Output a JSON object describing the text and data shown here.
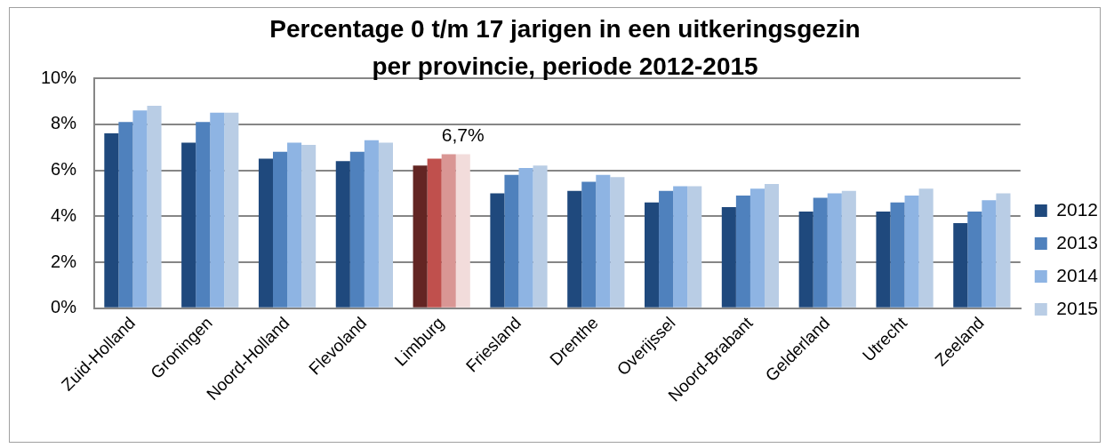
{
  "chart_data": {
    "type": "bar",
    "title": "Percentage 0 t/m 17 jarigen in een uitkeringsgezin\nper provincie, periode 2012-2015",
    "categories": [
      "Zuid-Holland",
      "Groningen",
      "Noord-Holland",
      "Flevoland",
      "Limburg",
      "Friesland",
      "Drenthe",
      "Overijssel",
      "Noord-Brabant",
      "Gelderland",
      "Utrecht",
      "Zeeland"
    ],
    "series": [
      {
        "name": "2012",
        "color": "#1f497d",
        "colors": [
          "#1f497d",
          "#1f497d",
          "#1f497d",
          "#1f497d",
          "#632523",
          "#1f497d",
          "#1f497d",
          "#1f497d",
          "#1f497d",
          "#1f497d",
          "#1f497d",
          "#1f497d"
        ],
        "values": [
          7.6,
          7.2,
          6.5,
          6.4,
          6.2,
          5.0,
          5.1,
          4.6,
          4.4,
          4.2,
          4.2,
          3.7
        ]
      },
      {
        "name": "2013",
        "color": "#4f81bd",
        "colors": [
          "#4f81bd",
          "#4f81bd",
          "#4f81bd",
          "#4f81bd",
          "#c0504d",
          "#4f81bd",
          "#4f81bd",
          "#4f81bd",
          "#4f81bd",
          "#4f81bd",
          "#4f81bd",
          "#4f81bd"
        ],
        "values": [
          8.1,
          8.1,
          6.8,
          6.8,
          6.5,
          5.8,
          5.5,
          5.1,
          4.9,
          4.8,
          4.6,
          4.2
        ]
      },
      {
        "name": "2014",
        "color": "#8eb4e3",
        "colors": [
          "#8eb4e3",
          "#8eb4e3",
          "#8eb4e3",
          "#8eb4e3",
          "#d99694",
          "#8eb4e3",
          "#8eb4e3",
          "#8eb4e3",
          "#8eb4e3",
          "#8eb4e3",
          "#8eb4e3",
          "#8eb4e3"
        ],
        "values": [
          8.6,
          8.5,
          7.2,
          7.3,
          6.7,
          6.1,
          5.8,
          5.3,
          5.2,
          5.0,
          4.9,
          4.7
        ]
      },
      {
        "name": "2015",
        "color": "#b9cde5",
        "colors": [
          "#b9cde5",
          "#b9cde5",
          "#b9cde5",
          "#b9cde5",
          "#f2dcdb",
          "#b9cde5",
          "#b9cde5",
          "#b9cde5",
          "#b9cde5",
          "#b9cde5",
          "#b9cde5",
          "#b9cde5"
        ],
        "values": [
          8.8,
          8.5,
          7.1,
          7.2,
          6.7,
          6.2,
          5.7,
          5.3,
          5.4,
          5.1,
          5.2,
          5.0
        ],
        "value_labels": [
          null,
          null,
          null,
          null,
          "6,7%",
          null,
          null,
          null,
          null,
          null,
          null,
          null
        ]
      }
    ],
    "ylim": [
      0,
      10
    ],
    "yticks": [
      {
        "value": 0,
        "label": "0%"
      },
      {
        "value": 2,
        "label": "2%"
      },
      {
        "value": 4,
        "label": "4%"
      },
      {
        "value": 6,
        "label": "6%"
      },
      {
        "value": 8,
        "label": "8%"
      },
      {
        "value": 10,
        "label": "10%"
      }
    ],
    "grid": "y",
    "legend": "right"
  }
}
